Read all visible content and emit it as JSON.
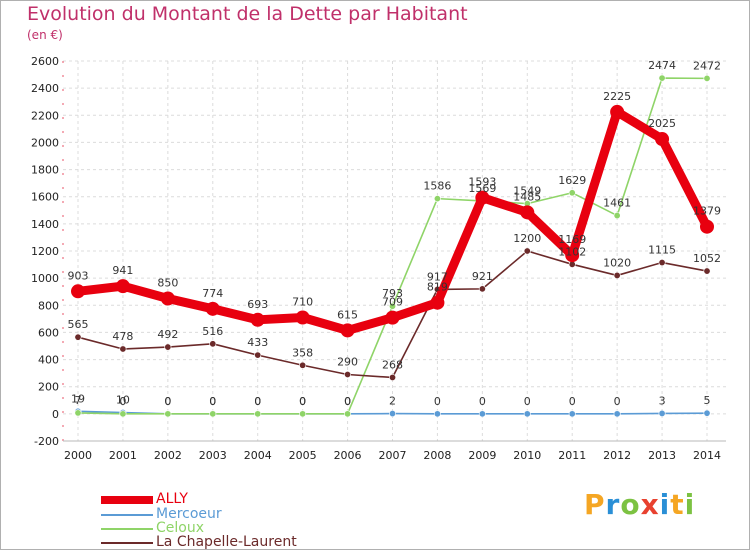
{
  "title": "Evolution du Montant de la Dette par Habitant",
  "subtitle": "(en €)",
  "brand": "Proxiti",
  "chart_data": {
    "type": "line",
    "title": "Evolution du Montant de la Dette par Habitant",
    "ylabel": "(en €)",
    "xlabel": "",
    "categories": [
      "2000",
      "2001",
      "2002",
      "2003",
      "2004",
      "2005",
      "2006",
      "2007",
      "2008",
      "2009",
      "2010",
      "2011",
      "2012",
      "2013",
      "2014"
    ],
    "ylim": [
      -200,
      2600
    ],
    "yticks": [
      "-200",
      "0",
      "200",
      "400",
      "600",
      "800",
      "1000",
      "1200",
      "1400",
      "1600",
      "1800",
      "2000",
      "2200",
      "2400",
      "2600"
    ],
    "grid": true,
    "legend_position": "bottom-left",
    "series": [
      {
        "name": "ALLY",
        "color": "#e8000f",
        "values": [
          903,
          941,
          850,
          774,
          693,
          710,
          615,
          709,
          819,
          1593,
          1485,
          1169,
          2225,
          2025,
          1379
        ],
        "labels": [
          "903",
          "941",
          "850",
          "774",
          "693",
          "710",
          "615",
          "709",
          "819",
          "1593",
          "1485",
          "1169",
          "2225",
          "2025",
          "1379"
        ]
      },
      {
        "name": "Mercoeur",
        "color": "#5b9bd5",
        "values": [
          19,
          10,
          0,
          0,
          0,
          0,
          0,
          2,
          0,
          0,
          0,
          0,
          0,
          3,
          5
        ],
        "labels": [
          "19",
          "10",
          "0",
          "0",
          "0",
          "0",
          "0",
          "2",
          "0",
          "0",
          "0",
          "0",
          "0",
          "3",
          "5"
        ]
      },
      {
        "name": "Celoux",
        "color": "#8fd468",
        "values": [
          7,
          0,
          0,
          0,
          0,
          0,
          0,
          793,
          1586,
          1569,
          1549,
          1629,
          1461,
          2474,
          2472
        ],
        "labels": [
          "7",
          "0",
          "0",
          "0",
          "0",
          "0",
          "0",
          "793",
          "1586",
          "1569",
          "1549",
          "1629",
          "1461",
          "2474",
          "2472"
        ]
      },
      {
        "name": "La Chapelle-Laurent",
        "color": "#6b2a2a",
        "values": [
          565,
          478,
          492,
          516,
          433,
          358,
          290,
          268,
          917,
          921,
          1200,
          1102,
          1020,
          1115,
          1052
        ],
        "labels": [
          "565",
          "478",
          "492",
          "516",
          "433",
          "358",
          "290",
          "268",
          "917",
          "921",
          "1200",
          "1102",
          "1020",
          "1115",
          "1052"
        ]
      }
    ]
  }
}
